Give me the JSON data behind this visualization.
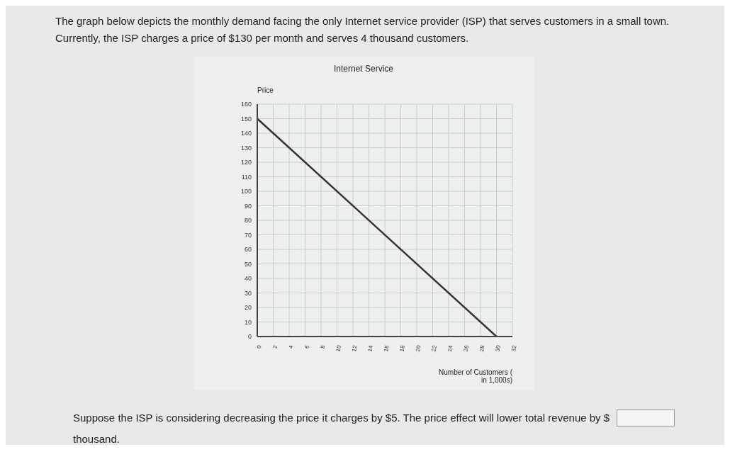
{
  "chart_data": {
    "type": "line",
    "title": "Internet Service",
    "xlabel": "Number of Customers (in 1,000s)",
    "ylabel": "Price",
    "annotations": [
      "The graph below depicts the monthly demand facing the only Internet service provider (ISP) that serves customers in a small town.",
      "Currently, the ISP charges a price of $130 per month and serves 4 thousand customers.",
      "Suppose the ISP is considering decreasing the price it charges by $5. The price effect will lower total revenue by $",
      "thousand."
    ],
    "x": [
      0,
      30
    ],
    "series": [
      {
        "color": "#333333",
        "values": [
          150,
          0
        ]
      }
    ],
    "xlim": [
      0,
      32
    ],
    "xticks": [
      0,
      2,
      4,
      6,
      8,
      10,
      12,
      14,
      16,
      18,
      20,
      22,
      24,
      26,
      28,
      30,
      32
    ],
    "ylim": [
      0,
      160
    ],
    "yticks": [
      0,
      10,
      20,
      30,
      40,
      50,
      60,
      70,
      80,
      90,
      100,
      110,
      120,
      130,
      140,
      150,
      160
    ],
    "grid": true,
    "marker": "none",
    "line_style": "solid",
    "legend": false
  }
}
